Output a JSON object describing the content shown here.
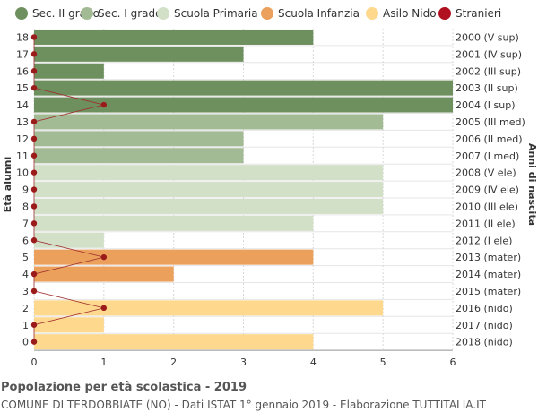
{
  "chart_data": {
    "type": "bar",
    "orientation": "horizontal",
    "title": "Popolazione per età scolastica - 2019",
    "subtitle": "COMUNE DI TERDOBBIATE (NO) - Dati ISTAT 1° gennaio 2019 - Elaborazione TUTTITALIA.IT",
    "ylabel": "Età alunni",
    "ylabel_right": "Anni di nascita",
    "xlim": [
      0,
      6
    ],
    "x_ticks": [
      "0",
      "1",
      "2",
      "3",
      "4",
      "5",
      "6"
    ],
    "grid": true,
    "legend_position": "top",
    "legend": [
      {
        "name": "Sec. II grado",
        "color": "#6e8f5e"
      },
      {
        "name": "Sec. I grado",
        "color": "#a3bb94"
      },
      {
        "name": "Scuola Primaria",
        "color": "#d3e0c8"
      },
      {
        "name": "Scuola Infanzia",
        "color": "#eba05c"
      },
      {
        "name": "Asilo Nido",
        "color": "#fdd88d"
      },
      {
        "name": "Stranieri",
        "color": "#b01020"
      }
    ],
    "rows": [
      {
        "age": "18",
        "year": "2000 (V sup)",
        "value": 4,
        "stranieri": 0,
        "group": 0
      },
      {
        "age": "17",
        "year": "2001 (IV sup)",
        "value": 3,
        "stranieri": 0,
        "group": 0
      },
      {
        "age": "16",
        "year": "2002 (III sup)",
        "value": 1,
        "stranieri": 0,
        "group": 0
      },
      {
        "age": "15",
        "year": "2003 (II sup)",
        "value": 6,
        "stranieri": 0,
        "group": 0
      },
      {
        "age": "14",
        "year": "2004 (I sup)",
        "value": 6,
        "stranieri": 1,
        "group": 0
      },
      {
        "age": "13",
        "year": "2005 (III med)",
        "value": 5,
        "stranieri": 0,
        "group": 1
      },
      {
        "age": "12",
        "year": "2006 (II med)",
        "value": 3,
        "stranieri": 0,
        "group": 1
      },
      {
        "age": "11",
        "year": "2007 (I med)",
        "value": 3,
        "stranieri": 0,
        "group": 1
      },
      {
        "age": "10",
        "year": "2008 (V ele)",
        "value": 5,
        "stranieri": 0,
        "group": 2
      },
      {
        "age": "9",
        "year": "2009 (IV ele)",
        "value": 5,
        "stranieri": 0,
        "group": 2
      },
      {
        "age": "8",
        "year": "2010 (III ele)",
        "value": 5,
        "stranieri": 0,
        "group": 2
      },
      {
        "age": "7",
        "year": "2011 (II ele)",
        "value": 4,
        "stranieri": 0,
        "group": 2
      },
      {
        "age": "6",
        "year": "2012 (I ele)",
        "value": 1,
        "stranieri": 0,
        "group": 2
      },
      {
        "age": "5",
        "year": "2013 (mater)",
        "value": 4,
        "stranieri": 1,
        "group": 3
      },
      {
        "age": "4",
        "year": "2014 (mater)",
        "value": 2,
        "stranieri": 0,
        "group": 3
      },
      {
        "age": "3",
        "year": "2015 (mater)",
        "value": 0,
        "stranieri": 0,
        "group": 3
      },
      {
        "age": "2",
        "year": "2016 (nido)",
        "value": 5,
        "stranieri": 1,
        "group": 4
      },
      {
        "age": "1",
        "year": "2017 (nido)",
        "value": 1,
        "stranieri": 0,
        "group": 4
      },
      {
        "age": "0",
        "year": "2018 (nido)",
        "value": 4,
        "stranieri": 0,
        "group": 4
      }
    ]
  }
}
